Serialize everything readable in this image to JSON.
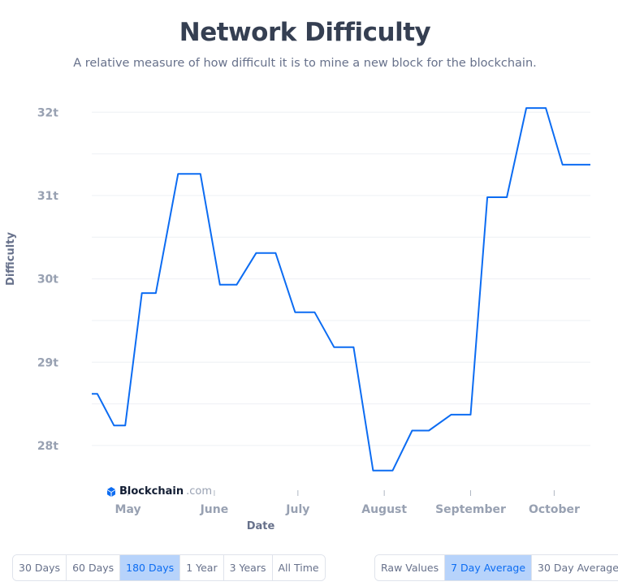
{
  "header": {
    "title": "Network Difficulty",
    "subtitle": "A relative measure of how difficult it is to mine a new block for the blockchain."
  },
  "watermark": {
    "brand": "Blockchain",
    "tld": ".com"
  },
  "colors": {
    "line": "#0c6cf2",
    "active_bg": "#b7d3fb",
    "active_text": "#0c6cf2",
    "grid": "#eef0f4"
  },
  "chart_data": {
    "type": "line",
    "xlabel": "Date",
    "ylabel": "Difficulty",
    "x_ticks": [
      "May",
      "June",
      "July",
      "August",
      "September",
      "October"
    ],
    "y_ticks": [
      {
        "label": "28t",
        "value": 28
      },
      {
        "label": "29t",
        "value": 29
      },
      {
        "label": "30t",
        "value": 30
      },
      {
        "label": "31t",
        "value": 31
      },
      {
        "label": "32t",
        "value": 32
      }
    ],
    "ylim": [
      27.6,
      32.1
    ],
    "xlim": [
      "2024-04-18",
      "2024-10-14"
    ],
    "grid": true,
    "series": [
      {
        "x": [
          "2024-04-18",
          "2024-04-20",
          "2024-04-26",
          "2024-04-30",
          "2024-05-06",
          "2024-05-11",
          "2024-05-19",
          "2024-05-27",
          "2024-06-03",
          "2024-06-09",
          "2024-06-16",
          "2024-06-23",
          "2024-06-30",
          "2024-07-07",
          "2024-07-14",
          "2024-07-21",
          "2024-07-28",
          "2024-08-04",
          "2024-08-11",
          "2024-08-17",
          "2024-08-25",
          "2024-09-01",
          "2024-09-07",
          "2024-09-14",
          "2024-09-21",
          "2024-09-28",
          "2024-10-04",
          "2024-10-12",
          "2024-10-14"
        ],
        "values": [
          28.62,
          28.62,
          28.24,
          28.24,
          29.83,
          29.83,
          31.26,
          31.26,
          29.93,
          29.93,
          30.31,
          30.31,
          29.6,
          29.6,
          29.18,
          29.18,
          27.7,
          27.7,
          28.18,
          28.18,
          28.37,
          28.37,
          30.98,
          30.98,
          32.05,
          32.05,
          31.37,
          31.37,
          31.37
        ]
      }
    ]
  },
  "controls": {
    "time_ranges": [
      {
        "label": "30 Days",
        "active": false
      },
      {
        "label": "60 Days",
        "active": false
      },
      {
        "label": "180 Days",
        "active": true
      },
      {
        "label": "1 Year",
        "active": false
      },
      {
        "label": "3 Years",
        "active": false
      },
      {
        "label": "All Time",
        "active": false
      }
    ],
    "averages": [
      {
        "label": "Raw Values",
        "active": false
      },
      {
        "label": "7 Day Average",
        "active": true
      },
      {
        "label": "30 Day Average",
        "active": false
      }
    ]
  }
}
